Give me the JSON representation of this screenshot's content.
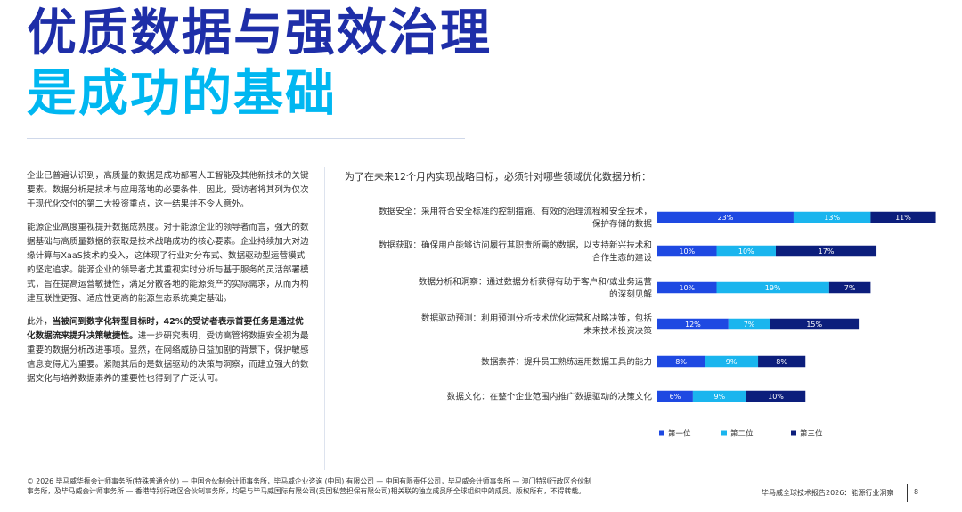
{
  "title": {
    "line1": "优质数据与强效治理",
    "line2": "是成功的基础"
  },
  "body": {
    "p1": "企业已普遍认识到，高质量的数据是成功部署人工智能及其他新技术的关键要素。数据分析是技术与应用落地的必要条件，因此，受访者将其列为仅次于现代化交付的第二大投资重点，这一结果并不令人意外。",
    "p2": "能源企业高度重视提升数据成熟度。对于能源企业的领导者而言，强大的数据基础与高质量数据的获取是技术战略成功的核心要素。企业持续加大对边缘计算与XaaS技术的投入，这体现了行业对分布式、数据驱动型运营模式的坚定追求。能源企业的领导者尤其重视实时分析与基于服务的灵活部署模式，旨在提高运营敏捷性，满足分散各地的能源资产的实际需求，从而为构建互联性更强、适应性更高的能源生态系统奠定基础。",
    "p3_pre": "此外，",
    "p3_bold": "当被问到数字化转型目标时，42%的受访者表示首要任务是通过优化数据流来提升决策敏捷性。",
    "p3_post": "进一步研究表明，受访高管将数据安全视为最重要的数据分析改进事项。显然，在网络威胁日益加剧的背景下，保护敏感信息变得尤为重要。紧随其后的是数据驱动的决策与洞察，而建立强大的数据文化与培养数据素养的重要性也得到了广泛认可。"
  },
  "chart_data": {
    "type": "bar",
    "stacked": true,
    "orientation": "horizontal",
    "title": "为了在未来12个月内实现战略目标，必须针对哪些领域优化数据分析：",
    "categories": [
      [
        "数据安全：采用符合安全标准的控制措施、有效的治理流程和安全技术，",
        "保护存储的数据"
      ],
      [
        "数据获取：确保用户能够访问履行其职责所需的数据，以支持新兴技术和",
        "合作生态的建设"
      ],
      [
        "数据分析和洞察：通过数据分析获得有助于客户和/或业务运营",
        "的深刻见解"
      ],
      [
        "数据驱动预测：利用预测分析技术优化运营和战略决策，包括",
        "未来技术投资决策"
      ],
      [
        "数据素养：提升员工熟练运用数据工具的能力"
      ],
      [
        "数据文化：在整个企业范围内推广数据驱动的决策文化"
      ]
    ],
    "series": [
      {
        "name": "第一位",
        "values": [
          23,
          10,
          10,
          12,
          8,
          6
        ],
        "labels": [
          "23%",
          "10%",
          "10%",
          "12%",
          "8%",
          "6%"
        ],
        "color": "#1E49E2"
      },
      {
        "name": "第二位",
        "values": [
          13,
          10,
          19,
          7,
          9,
          9
        ],
        "labels": [
          "13%",
          "10%",
          "19%",
          "7%",
          "9%",
          "9%"
        ],
        "color": "#1AB5EE"
      },
      {
        "name": "第三位",
        "values": [
          11,
          17,
          7,
          15,
          8,
          10
        ],
        "labels": [
          "11%",
          "17%",
          "7%",
          "15%",
          "8%",
          "10%"
        ],
        "color": "#0C1E7C"
      }
    ],
    "legend": "bottom"
  },
  "footer": {
    "copyright": "© 2026 毕马威华振会计师事务所(特殊普通合伙) — 中国合伙制会计师事务所，毕马威企业咨询 (中国) 有限公司 — 中国有限责任公司，毕马威会计师事务所 — 澳门特别行政区合伙制事务所，及毕马威会计师事务所 — 香港特别行政区合伙制事务所，均是与毕马威国际有限公司(英国私营担保有限公司)相关联的独立成员所全球组织中的成员。版权所有，不得转载。",
    "report": "毕马威全球技术报告2026：能源行业洞察",
    "page": "8"
  }
}
